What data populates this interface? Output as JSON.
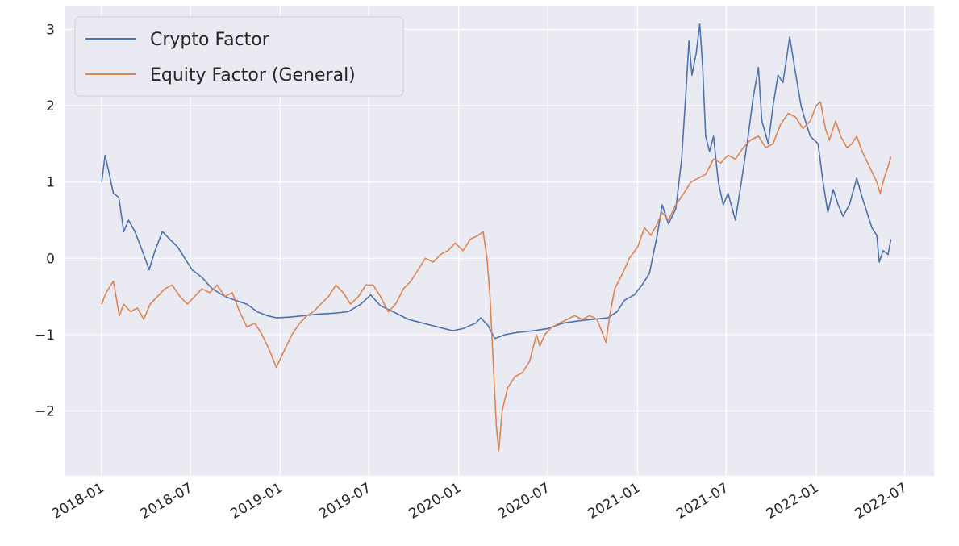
{
  "chart_data": {
    "type": "line",
    "title": "",
    "xlabel": "",
    "ylabel": "",
    "x_axis": "date",
    "xlim": [
      "2017-10-17",
      "2022-08-30"
    ],
    "ylim": [
      -2.85,
      3.3
    ],
    "grid": true,
    "legend_position": "top-left",
    "x_ticks": [
      "2018-01",
      "2018-07",
      "2019-01",
      "2019-07",
      "2020-01",
      "2020-07",
      "2021-01",
      "2021-07",
      "2022-01",
      "2022-07"
    ],
    "y_ticks": [
      3,
      2,
      1,
      0,
      -1,
      -2
    ],
    "y_tick_labels": [
      "3",
      "2",
      "1",
      "0",
      "−1",
      "−2"
    ],
    "series": [
      {
        "name": "Crypto Factor",
        "color": "#4c72b0",
        "points": [
          [
            "2018-01-01",
            1.0
          ],
          [
            "2018-01-08",
            1.35
          ],
          [
            "2018-01-15",
            1.15
          ],
          [
            "2018-01-25",
            0.85
          ],
          [
            "2018-02-05",
            0.8
          ],
          [
            "2018-02-15",
            0.35
          ],
          [
            "2018-02-25",
            0.5
          ],
          [
            "2018-03-10",
            0.35
          ],
          [
            "2018-03-25",
            0.1
          ],
          [
            "2018-04-08",
            -0.15
          ],
          [
            "2018-04-20",
            0.1
          ],
          [
            "2018-05-05",
            0.35
          ],
          [
            "2018-05-20",
            0.25
          ],
          [
            "2018-06-05",
            0.15
          ],
          [
            "2018-06-20",
            0.0
          ],
          [
            "2018-07-05",
            -0.15
          ],
          [
            "2018-07-25",
            -0.25
          ],
          [
            "2018-08-15",
            -0.4
          ],
          [
            "2018-09-10",
            -0.5
          ],
          [
            "2018-10-01",
            -0.55
          ],
          [
            "2018-10-25",
            -0.6
          ],
          [
            "2018-11-15",
            -0.7
          ],
          [
            "2018-12-05",
            -0.75
          ],
          [
            "2018-12-25",
            -0.78
          ],
          [
            "2019-01-20",
            -0.77
          ],
          [
            "2019-02-20",
            -0.75
          ],
          [
            "2019-03-20",
            -0.73
          ],
          [
            "2019-04-20",
            -0.72
          ],
          [
            "2019-05-20",
            -0.7
          ],
          [
            "2019-06-15",
            -0.6
          ],
          [
            "2019-07-05",
            -0.48
          ],
          [
            "2019-07-25",
            -0.62
          ],
          [
            "2019-08-20",
            -0.7
          ],
          [
            "2019-09-20",
            -0.8
          ],
          [
            "2019-10-20",
            -0.85
          ],
          [
            "2019-11-20",
            -0.9
          ],
          [
            "2019-12-20",
            -0.95
          ],
          [
            "2020-01-10",
            -0.92
          ],
          [
            "2020-02-05",
            -0.85
          ],
          [
            "2020-02-15",
            -0.78
          ],
          [
            "2020-03-01",
            -0.88
          ],
          [
            "2020-03-15",
            -1.05
          ],
          [
            "2020-04-05",
            -1.0
          ],
          [
            "2020-05-01",
            -0.97
          ],
          [
            "2020-06-01",
            -0.95
          ],
          [
            "2020-07-01",
            -0.92
          ],
          [
            "2020-08-01",
            -0.85
          ],
          [
            "2020-09-01",
            -0.82
          ],
          [
            "2020-10-01",
            -0.8
          ],
          [
            "2020-11-01",
            -0.78
          ],
          [
            "2020-11-20",
            -0.7
          ],
          [
            "2020-12-05",
            -0.55
          ],
          [
            "2020-12-25",
            -0.48
          ],
          [
            "2021-01-10",
            -0.35
          ],
          [
            "2021-01-25",
            -0.2
          ],
          [
            "2021-02-10",
            0.3
          ],
          [
            "2021-02-20",
            0.7
          ],
          [
            "2021-03-05",
            0.45
          ],
          [
            "2021-03-20",
            0.65
          ],
          [
            "2021-04-01",
            1.3
          ],
          [
            "2021-04-10",
            2.2
          ],
          [
            "2021-04-16",
            2.85
          ],
          [
            "2021-04-22",
            2.4
          ],
          [
            "2021-05-01",
            2.7
          ],
          [
            "2021-05-08",
            3.07
          ],
          [
            "2021-05-14",
            2.5
          ],
          [
            "2021-05-20",
            1.6
          ],
          [
            "2021-05-28",
            1.4
          ],
          [
            "2021-06-05",
            1.6
          ],
          [
            "2021-06-15",
            1.0
          ],
          [
            "2021-06-25",
            0.7
          ],
          [
            "2021-07-05",
            0.85
          ],
          [
            "2021-07-20",
            0.5
          ],
          [
            "2021-08-01",
            1.0
          ],
          [
            "2021-08-15",
            1.6
          ],
          [
            "2021-08-25",
            2.1
          ],
          [
            "2021-09-05",
            2.5
          ],
          [
            "2021-09-12",
            1.8
          ],
          [
            "2021-09-25",
            1.5
          ],
          [
            "2021-10-05",
            2.0
          ],
          [
            "2021-10-15",
            2.4
          ],
          [
            "2021-10-25",
            2.3
          ],
          [
            "2021-11-08",
            2.9
          ],
          [
            "2021-11-18",
            2.5
          ],
          [
            "2021-12-01",
            2.0
          ],
          [
            "2021-12-10",
            1.8
          ],
          [
            "2021-12-20",
            1.6
          ],
          [
            "2022-01-05",
            1.5
          ],
          [
            "2022-01-15",
            1.0
          ],
          [
            "2022-01-25",
            0.6
          ],
          [
            "2022-02-05",
            0.9
          ],
          [
            "2022-02-15",
            0.7
          ],
          [
            "2022-02-25",
            0.55
          ],
          [
            "2022-03-10",
            0.7
          ],
          [
            "2022-03-25",
            1.05
          ],
          [
            "2022-04-05",
            0.8
          ],
          [
            "2022-04-15",
            0.6
          ],
          [
            "2022-04-25",
            0.4
          ],
          [
            "2022-05-05",
            0.3
          ],
          [
            "2022-05-10",
            -0.05
          ],
          [
            "2022-05-18",
            0.1
          ],
          [
            "2022-05-28",
            0.05
          ],
          [
            "2022-06-03",
            0.25
          ]
        ]
      },
      {
        "name": "Equity Factor (General)",
        "color": "#dd8452",
        "points": [
          [
            "2018-01-01",
            -0.6
          ],
          [
            "2018-01-10",
            -0.45
          ],
          [
            "2018-01-25",
            -0.3
          ],
          [
            "2018-02-06",
            -0.75
          ],
          [
            "2018-02-15",
            -0.6
          ],
          [
            "2018-03-01",
            -0.7
          ],
          [
            "2018-03-15",
            -0.65
          ],
          [
            "2018-03-28",
            -0.8
          ],
          [
            "2018-04-10",
            -0.6
          ],
          [
            "2018-04-25",
            -0.5
          ],
          [
            "2018-05-10",
            -0.4
          ],
          [
            "2018-05-25",
            -0.35
          ],
          [
            "2018-06-10",
            -0.5
          ],
          [
            "2018-06-25",
            -0.6
          ],
          [
            "2018-07-10",
            -0.5
          ],
          [
            "2018-07-25",
            -0.4
          ],
          [
            "2018-08-10",
            -0.45
          ],
          [
            "2018-08-25",
            -0.35
          ],
          [
            "2018-09-10",
            -0.5
          ],
          [
            "2018-09-25",
            -0.45
          ],
          [
            "2018-10-10",
            -0.7
          ],
          [
            "2018-10-25",
            -0.9
          ],
          [
            "2018-11-10",
            -0.85
          ],
          [
            "2018-11-25",
            -1.0
          ],
          [
            "2018-12-10",
            -1.2
          ],
          [
            "2018-12-24",
            -1.43
          ],
          [
            "2019-01-10",
            -1.2
          ],
          [
            "2019-01-25",
            -1.0
          ],
          [
            "2019-02-10",
            -0.85
          ],
          [
            "2019-02-25",
            -0.75
          ],
          [
            "2019-03-10",
            -0.7
          ],
          [
            "2019-03-25",
            -0.6
          ],
          [
            "2019-04-10",
            -0.5
          ],
          [
            "2019-04-25",
            -0.35
          ],
          [
            "2019-05-10",
            -0.45
          ],
          [
            "2019-05-25",
            -0.6
          ],
          [
            "2019-06-10",
            -0.5
          ],
          [
            "2019-06-25",
            -0.35
          ],
          [
            "2019-07-10",
            -0.35
          ],
          [
            "2019-07-25",
            -0.5
          ],
          [
            "2019-08-10",
            -0.7
          ],
          [
            "2019-08-25",
            -0.6
          ],
          [
            "2019-09-10",
            -0.4
          ],
          [
            "2019-09-25",
            -0.3
          ],
          [
            "2019-10-10",
            -0.15
          ],
          [
            "2019-10-25",
            0.0
          ],
          [
            "2019-11-10",
            -0.05
          ],
          [
            "2019-11-25",
            0.05
          ],
          [
            "2019-12-10",
            0.1
          ],
          [
            "2019-12-25",
            0.2
          ],
          [
            "2020-01-10",
            0.1
          ],
          [
            "2020-01-25",
            0.25
          ],
          [
            "2020-02-10",
            0.3
          ],
          [
            "2020-02-20",
            0.35
          ],
          [
            "2020-02-28",
            0.0
          ],
          [
            "2020-03-05",
            -0.5
          ],
          [
            "2020-03-12",
            -1.4
          ],
          [
            "2020-03-18",
            -2.2
          ],
          [
            "2020-03-23",
            -2.52
          ],
          [
            "2020-03-30",
            -2.0
          ],
          [
            "2020-04-10",
            -1.7
          ],
          [
            "2020-04-25",
            -1.55
          ],
          [
            "2020-05-10",
            -1.5
          ],
          [
            "2020-05-25",
            -1.35
          ],
          [
            "2020-06-08",
            -1.0
          ],
          [
            "2020-06-15",
            -1.15
          ],
          [
            "2020-06-25",
            -1.0
          ],
          [
            "2020-07-10",
            -0.9
          ],
          [
            "2020-07-25",
            -0.85
          ],
          [
            "2020-08-10",
            -0.8
          ],
          [
            "2020-08-25",
            -0.75
          ],
          [
            "2020-09-10",
            -0.8
          ],
          [
            "2020-09-25",
            -0.75
          ],
          [
            "2020-10-10",
            -0.8
          ],
          [
            "2020-10-28",
            -1.1
          ],
          [
            "2020-11-05",
            -0.75
          ],
          [
            "2020-11-15",
            -0.4
          ],
          [
            "2020-12-01",
            -0.2
          ],
          [
            "2020-12-15",
            0.0
          ],
          [
            "2021-01-01",
            0.15
          ],
          [
            "2021-01-15",
            0.4
          ],
          [
            "2021-01-28",
            0.3
          ],
          [
            "2021-02-10",
            0.45
          ],
          [
            "2021-02-20",
            0.6
          ],
          [
            "2021-03-05",
            0.5
          ],
          [
            "2021-03-20",
            0.7
          ],
          [
            "2021-04-05",
            0.85
          ],
          [
            "2021-04-20",
            1.0
          ],
          [
            "2021-05-05",
            1.05
          ],
          [
            "2021-05-20",
            1.1
          ],
          [
            "2021-06-05",
            1.3
          ],
          [
            "2021-06-20",
            1.25
          ],
          [
            "2021-07-05",
            1.35
          ],
          [
            "2021-07-20",
            1.3
          ],
          [
            "2021-08-05",
            1.45
          ],
          [
            "2021-08-20",
            1.55
          ],
          [
            "2021-09-05",
            1.6
          ],
          [
            "2021-09-20",
            1.45
          ],
          [
            "2021-10-05",
            1.5
          ],
          [
            "2021-10-20",
            1.75
          ],
          [
            "2021-11-05",
            1.9
          ],
          [
            "2021-11-20",
            1.85
          ],
          [
            "2021-12-05",
            1.7
          ],
          [
            "2021-12-20",
            1.8
          ],
          [
            "2022-01-01",
            2.0
          ],
          [
            "2022-01-10",
            2.05
          ],
          [
            "2022-01-20",
            1.7
          ],
          [
            "2022-01-28",
            1.55
          ],
          [
            "2022-02-10",
            1.8
          ],
          [
            "2022-02-20",
            1.6
          ],
          [
            "2022-03-05",
            1.45
          ],
          [
            "2022-03-15",
            1.5
          ],
          [
            "2022-03-25",
            1.6
          ],
          [
            "2022-04-05",
            1.4
          ],
          [
            "2022-04-20",
            1.2
          ],
          [
            "2022-05-05",
            1.0
          ],
          [
            "2022-05-12",
            0.85
          ],
          [
            "2022-05-20",
            1.05
          ],
          [
            "2022-05-28",
            1.2
          ],
          [
            "2022-06-03",
            1.33
          ]
        ]
      }
    ]
  }
}
